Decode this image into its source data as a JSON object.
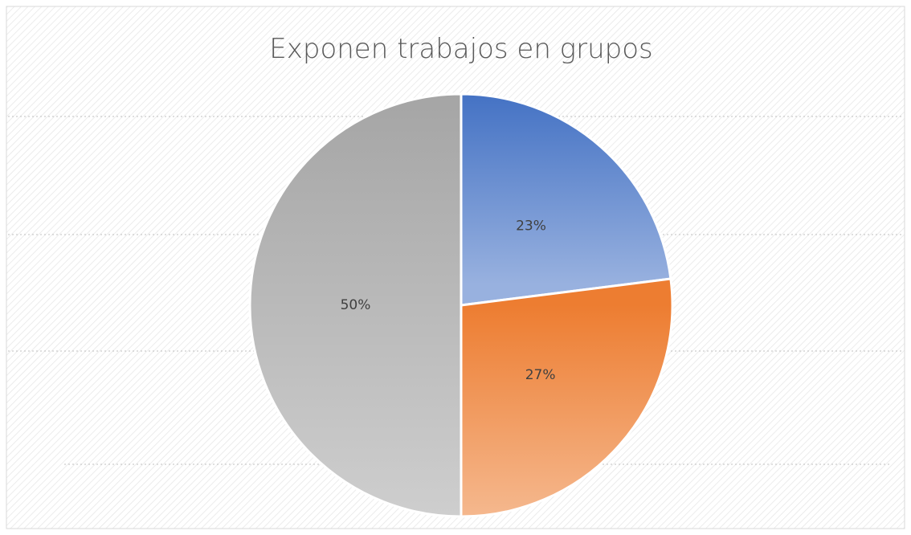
{
  "chart_data": {
    "type": "pie",
    "title": "Exponen trabajos en grupos",
    "values": [
      23,
      27,
      50
    ],
    "value_labels": [
      "23%",
      "27%",
      "50%"
    ],
    "colors": [
      "#4472c4",
      "#ed7d31",
      "#a5a5a5"
    ]
  }
}
